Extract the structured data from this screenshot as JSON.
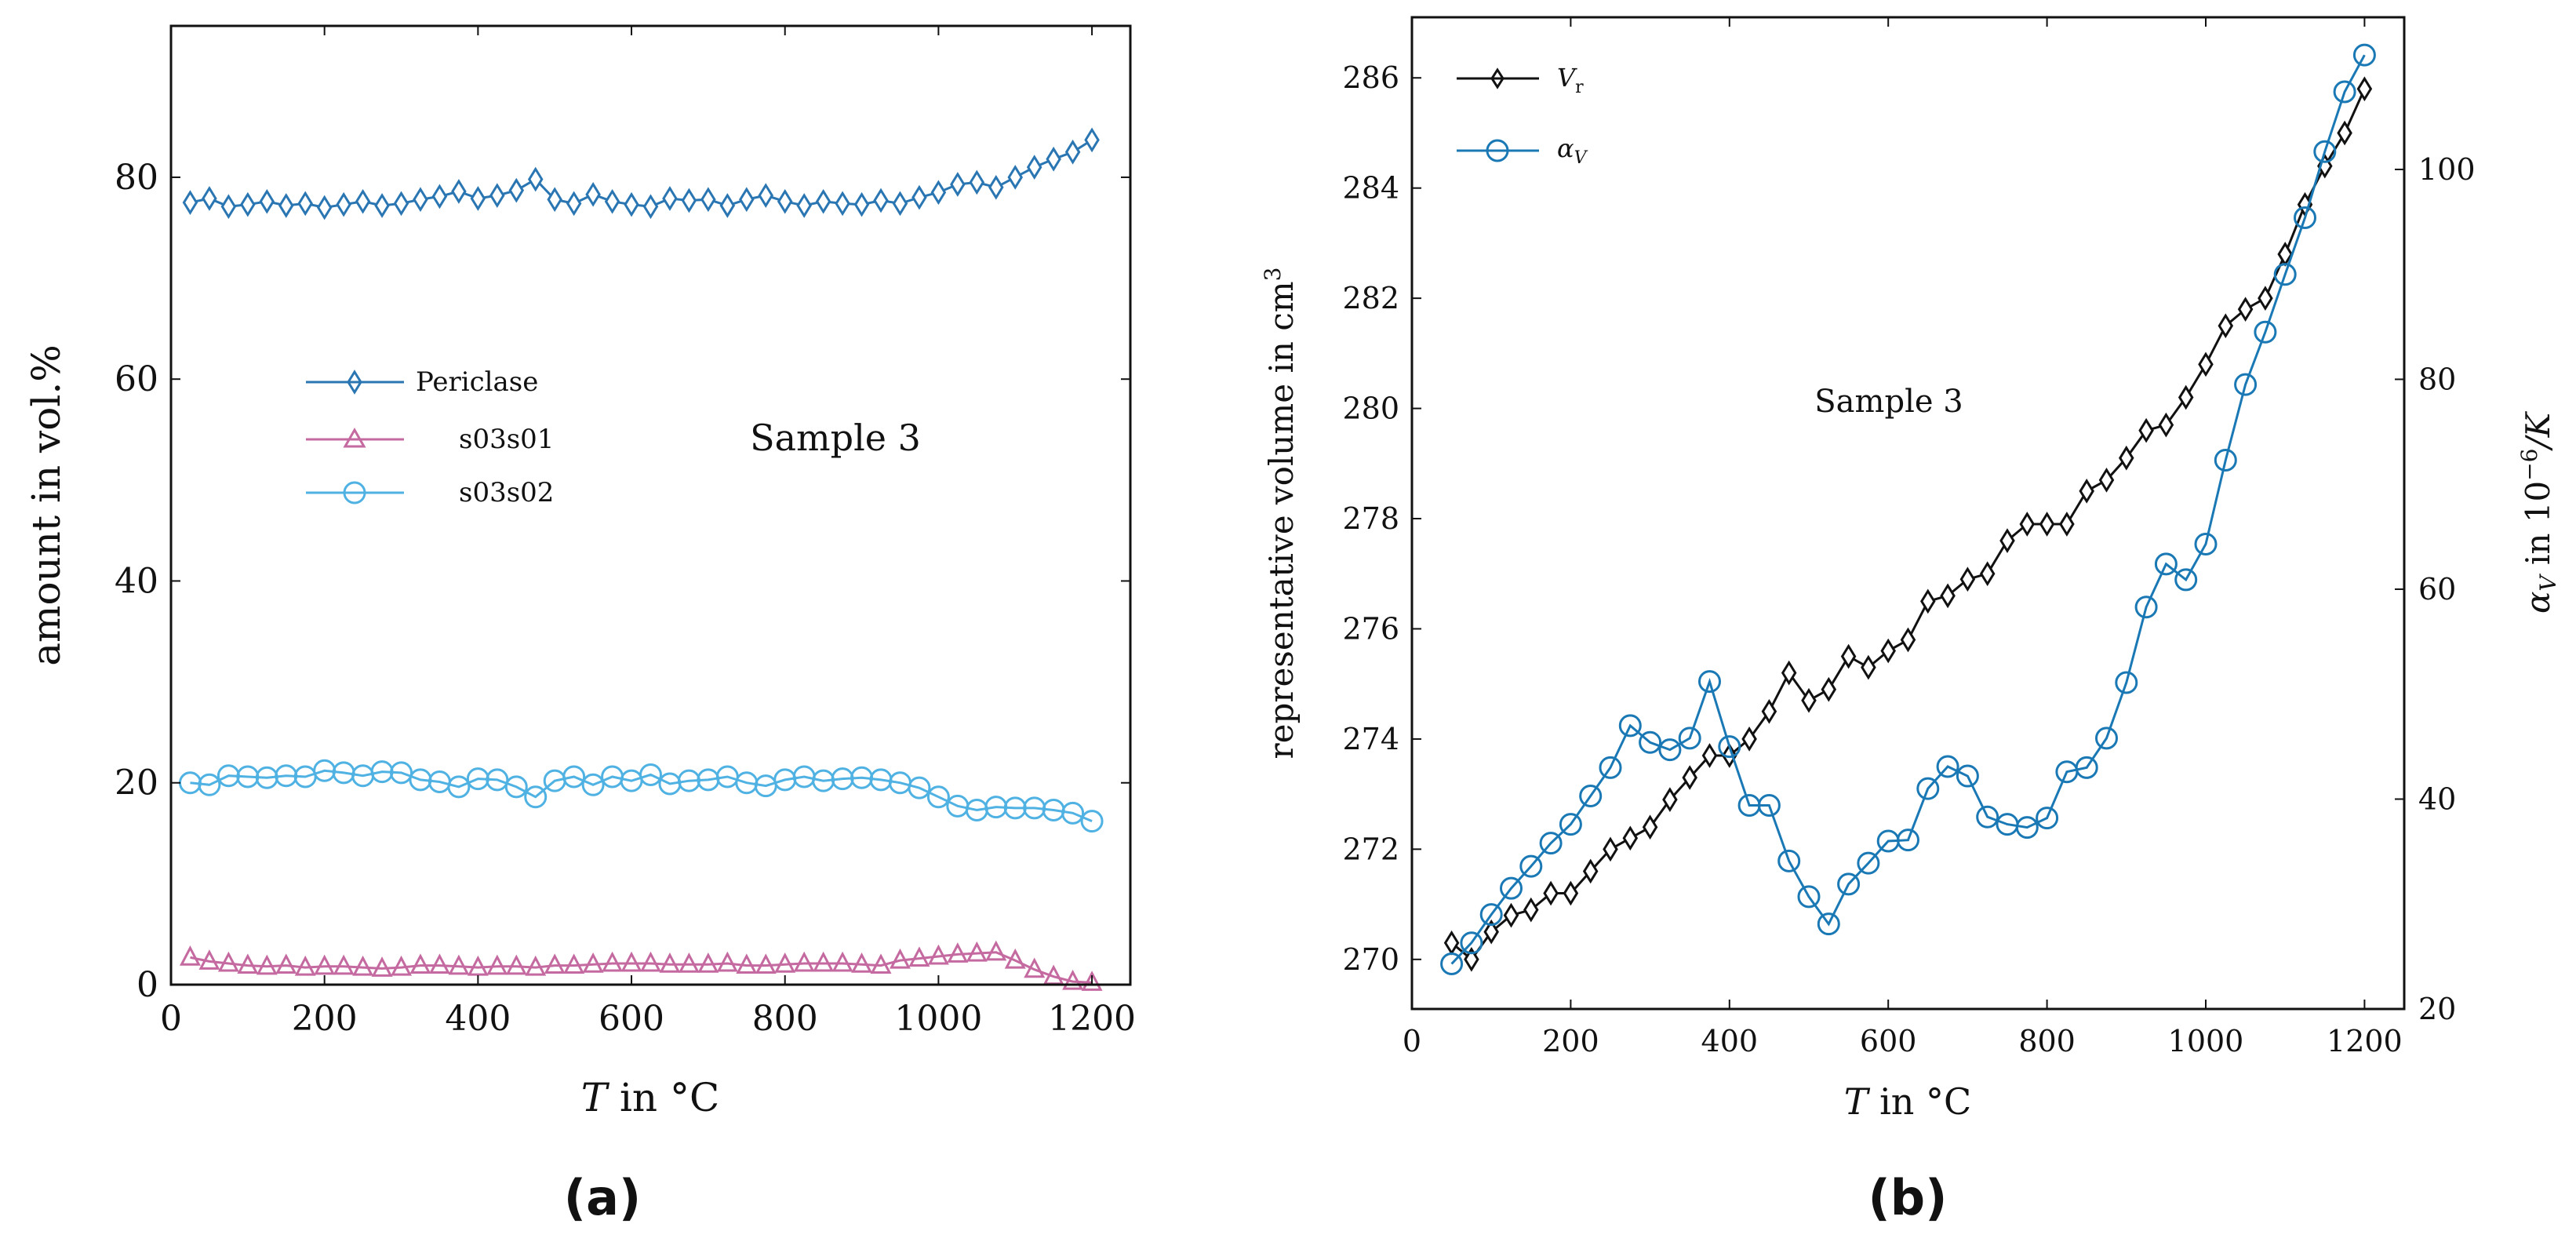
{
  "figure": {
    "panel_a_label": "(a)",
    "panel_b_label": "(b)"
  },
  "colors": {
    "axis": "#111111",
    "periclase": "#2a76b2",
    "s03s01": "#c46aa0",
    "s03s02": "#4fb2e3",
    "vr": "#111111",
    "alpha": "#1a79b5"
  },
  "chart_data": [
    {
      "type": "line",
      "panel": "a",
      "annotation": "Sample 3",
      "xlabel": "T in °C",
      "ylabel": "amount in vol.%",
      "xlim": [
        0,
        1250
      ],
      "ylim": [
        0,
        95
      ],
      "xticks": [
        "0",
        "200",
        "400",
        "600",
        "800",
        "1000",
        "1200"
      ],
      "yticks": [
        "0",
        "20",
        "40",
        "60",
        "80"
      ],
      "legend_position": "center-left",
      "x": [
        25,
        50,
        75,
        100,
        125,
        150,
        175,
        200,
        225,
        250,
        275,
        300,
        325,
        350,
        375,
        400,
        425,
        450,
        475,
        500,
        525,
        550,
        575,
        600,
        625,
        650,
        675,
        700,
        725,
        750,
        775,
        800,
        825,
        850,
        875,
        900,
        925,
        950,
        975,
        1000,
        1025,
        1050,
        1075,
        1100,
        1125,
        1150,
        1175,
        1200
      ],
      "series": [
        {
          "name": "Periclase",
          "marker": "diamond",
          "values": [
            77.5,
            77.9,
            77.1,
            77.3,
            77.6,
            77.2,
            77.4,
            77.0,
            77.3,
            77.6,
            77.2,
            77.4,
            77.8,
            78.1,
            78.6,
            77.9,
            78.2,
            78.7,
            79.8,
            77.8,
            77.4,
            78.3,
            77.6,
            77.3,
            77.1,
            77.9,
            77.7,
            77.8,
            77.2,
            77.8,
            78.2,
            77.6,
            77.2,
            77.6,
            77.4,
            77.3,
            77.7,
            77.4,
            78.0,
            78.5,
            79.3,
            79.5,
            79.0,
            80.0,
            81.0,
            81.8,
            82.5,
            83.7
          ]
        },
        {
          "name": "s03s01",
          "marker": "triangle",
          "values": [
            2.7,
            2.3,
            2.1,
            1.9,
            1.8,
            1.9,
            1.7,
            1.8,
            1.8,
            1.7,
            1.6,
            1.7,
            1.9,
            1.9,
            1.8,
            1.7,
            1.8,
            1.8,
            1.7,
            1.9,
            1.9,
            2.0,
            2.1,
            2.1,
            2.1,
            2.0,
            2.0,
            2.0,
            2.1,
            1.9,
            1.9,
            2.0,
            2.1,
            2.1,
            2.1,
            2.0,
            1.9,
            2.4,
            2.6,
            2.8,
            3.0,
            3.1,
            3.2,
            2.4,
            1.5,
            0.8,
            0.3,
            0.2
          ]
        },
        {
          "name": "s03s02",
          "marker": "circle",
          "values": [
            20.0,
            19.8,
            20.7,
            20.6,
            20.5,
            20.7,
            20.6,
            21.2,
            21.0,
            20.7,
            21.1,
            21.0,
            20.3,
            20.1,
            19.6,
            20.4,
            20.3,
            19.6,
            18.6,
            20.2,
            20.6,
            19.8,
            20.6,
            20.2,
            20.8,
            19.9,
            20.2,
            20.3,
            20.6,
            20.0,
            19.7,
            20.3,
            20.6,
            20.2,
            20.4,
            20.5,
            20.3,
            20.0,
            19.5,
            18.6,
            17.7,
            17.3,
            17.6,
            17.5,
            17.5,
            17.3,
            17.0,
            16.2
          ]
        }
      ]
    },
    {
      "type": "line",
      "panel": "b",
      "annotation": "Sample 3",
      "xlabel": "T in °C",
      "ylabel_left": "representative volume in cm",
      "ylabel_left_sup": "3",
      "ylabel_right": "α",
      "ylabel_right_sub": "V",
      "ylabel_right_mid": " in 10",
      "ylabel_right_sup": "−6",
      "ylabel_right_tail": "/K",
      "xlim": [
        0,
        1250
      ],
      "ylim_left": [
        269.1,
        287.1
      ],
      "ylim_right": [
        20,
        114.5
      ],
      "xticks": [
        "0",
        "200",
        "400",
        "600",
        "800",
        "1000",
        "1200"
      ],
      "yticks_left": [
        "270",
        "272",
        "274",
        "276",
        "278",
        "280",
        "282",
        "284",
        "286"
      ],
      "yticks_right": [
        "20",
        "40",
        "60",
        "80",
        "100"
      ],
      "legend_position": "top-left",
      "x": [
        50,
        75,
        100,
        125,
        150,
        175,
        200,
        225,
        250,
        275,
        300,
        325,
        350,
        375,
        400,
        425,
        450,
        475,
        500,
        525,
        550,
        575,
        600,
        625,
        650,
        675,
        700,
        725,
        750,
        775,
        800,
        825,
        850,
        875,
        900,
        925,
        950,
        975,
        1000,
        1025,
        1050,
        1075,
        1100,
        1125,
        1150,
        1175,
        1200
      ],
      "series": [
        {
          "name": "V",
          "name_sub": "r",
          "axis": "left",
          "marker": "diamond",
          "values": [
            270.3,
            270.0,
            270.5,
            270.8,
            270.9,
            271.2,
            271.2,
            271.6,
            272.0,
            272.2,
            272.4,
            272.9,
            273.3,
            273.7,
            273.7,
            274.0,
            274.5,
            275.2,
            274.7,
            274.9,
            275.5,
            275.3,
            275.6,
            275.8,
            276.5,
            276.6,
            276.9,
            277.0,
            277.6,
            277.9,
            277.9,
            277.9,
            278.5,
            278.7,
            279.1,
            279.6,
            279.7,
            280.2,
            280.8,
            281.5,
            281.8,
            282.0,
            282.8,
            283.7,
            284.4,
            285.0,
            285.8
          ]
        },
        {
          "name": "α",
          "name_sub": "V",
          "axis": "right",
          "marker": "circle",
          "values": [
            24.3,
            26.3,
            29.0,
            31.5,
            33.6,
            35.8,
            37.6,
            40.3,
            43.0,
            47.0,
            45.4,
            44.7,
            45.8,
            51.2,
            45.0,
            39.4,
            39.4,
            34.1,
            30.7,
            28.1,
            31.9,
            33.9,
            36.0,
            36.1,
            41.0,
            43.1,
            42.2,
            38.3,
            37.6,
            37.3,
            38.2,
            42.6,
            43.0,
            45.8,
            51.1,
            58.3,
            62.4,
            60.9,
            64.3,
            72.3,
            79.5,
            84.5,
            90.0,
            95.4,
            101.7,
            107.4,
            110.9
          ]
        }
      ]
    }
  ]
}
